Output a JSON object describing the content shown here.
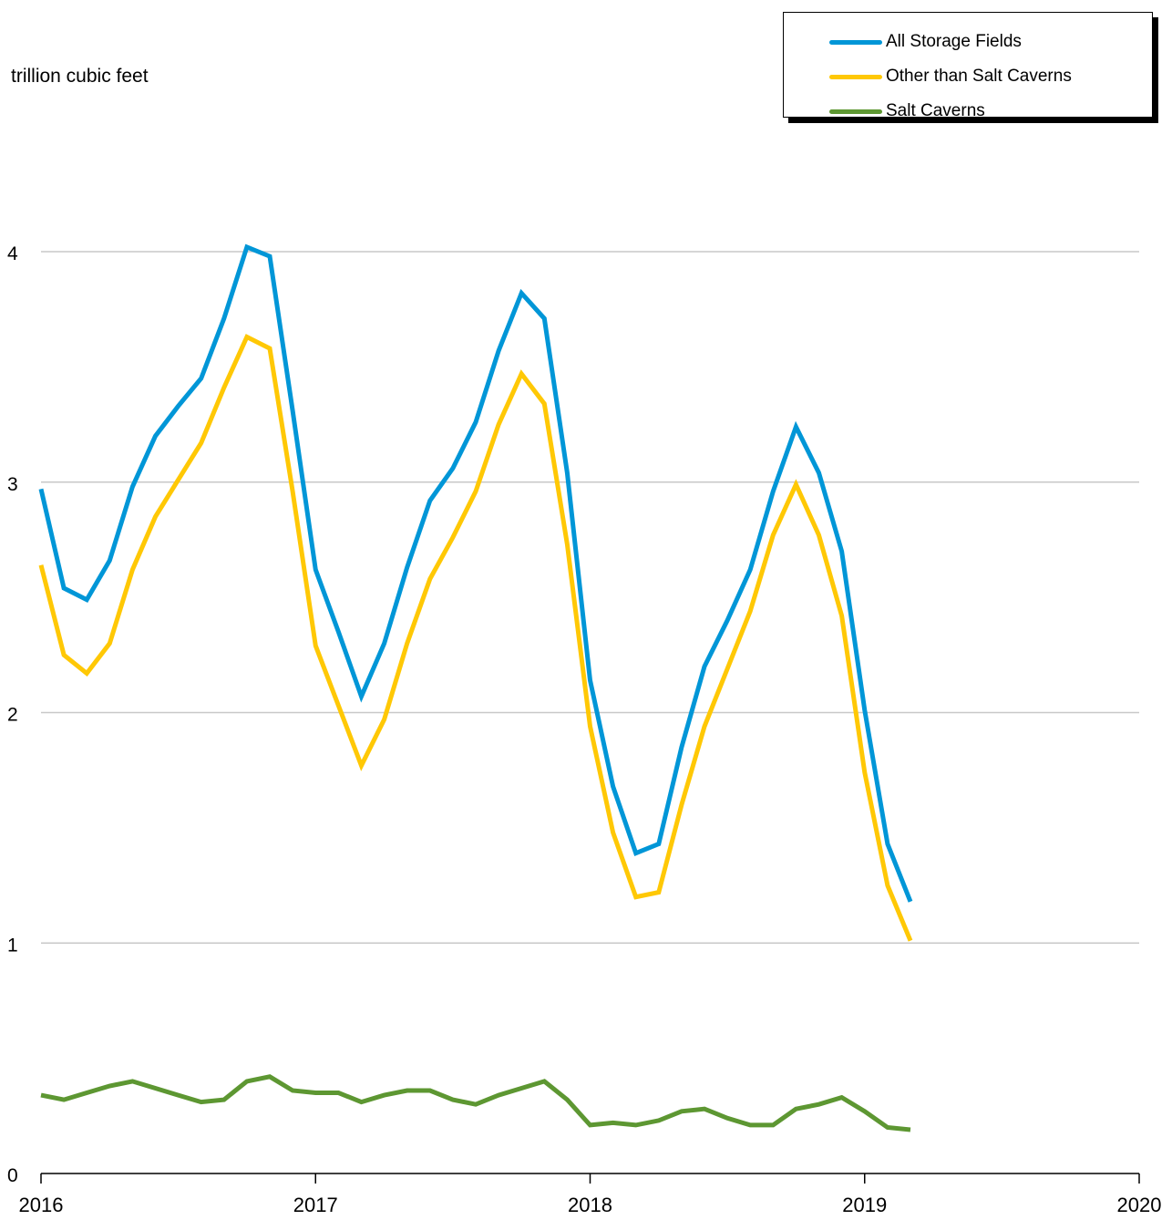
{
  "chart_data": {
    "type": "line",
    "unit_label": "trillion cubic feet",
    "x_ticks": [
      "2016",
      "2017",
      "2018",
      "2019",
      "2020"
    ],
    "xlim": [
      "2016-01",
      "2020-01"
    ],
    "y_ticks": [
      "0",
      "1",
      "2",
      "3",
      "4"
    ],
    "ylim": [
      0,
      4
    ],
    "grid": true,
    "legend_position": "top-right",
    "x": [
      "2016-01",
      "2016-02",
      "2016-03",
      "2016-04",
      "2016-05",
      "2016-06",
      "2016-07",
      "2016-08",
      "2016-09",
      "2016-10",
      "2016-11",
      "2016-12",
      "2017-01",
      "2017-02",
      "2017-03",
      "2017-04",
      "2017-05",
      "2017-06",
      "2017-07",
      "2017-08",
      "2017-09",
      "2017-10",
      "2017-11",
      "2017-12",
      "2018-01",
      "2018-02",
      "2018-03",
      "2018-04",
      "2018-05",
      "2018-06",
      "2018-07",
      "2018-08",
      "2018-09",
      "2018-10",
      "2018-11",
      "2018-12",
      "2019-01",
      "2019-02",
      "2019-03"
    ],
    "series": [
      {
        "name": "All Storage Fields",
        "color": "#0096D7",
        "values": [
          2.97,
          2.54,
          2.49,
          2.66,
          2.98,
          3.2,
          3.33,
          3.45,
          3.71,
          4.02,
          3.98,
          3.31,
          2.62,
          2.35,
          2.07,
          2.3,
          2.63,
          2.92,
          3.06,
          3.26,
          3.57,
          3.82,
          3.71,
          3.04,
          2.14,
          1.68,
          1.39,
          1.43,
          1.85,
          2.2,
          2.4,
          2.62,
          2.96,
          3.24,
          3.04,
          2.7,
          2.01,
          1.43,
          1.18
        ]
      },
      {
        "name": "Other than Salt Caverns",
        "color": "#FFC805",
        "values": [
          2.64,
          2.25,
          2.17,
          2.3,
          2.62,
          2.85,
          3.01,
          3.17,
          3.41,
          3.63,
          3.58,
          2.96,
          2.29,
          2.03,
          1.77,
          1.97,
          2.3,
          2.58,
          2.76,
          2.96,
          3.25,
          3.47,
          3.34,
          2.73,
          1.94,
          1.48,
          1.2,
          1.22,
          1.6,
          1.94,
          2.19,
          2.44,
          2.77,
          2.99,
          2.77,
          2.42,
          1.74,
          1.25,
          1.01
        ]
      },
      {
        "name": "Salt Caverns",
        "color": "#5D9732",
        "values": [
          0.34,
          0.32,
          0.35,
          0.38,
          0.4,
          0.37,
          0.34,
          0.31,
          0.32,
          0.4,
          0.42,
          0.36,
          0.35,
          0.35,
          0.31,
          0.34,
          0.36,
          0.36,
          0.32,
          0.3,
          0.34,
          0.37,
          0.4,
          0.32,
          0.21,
          0.22,
          0.21,
          0.23,
          0.27,
          0.28,
          0.24,
          0.21,
          0.21,
          0.28,
          0.3,
          0.33,
          0.27,
          0.2,
          0.19
        ]
      }
    ]
  }
}
